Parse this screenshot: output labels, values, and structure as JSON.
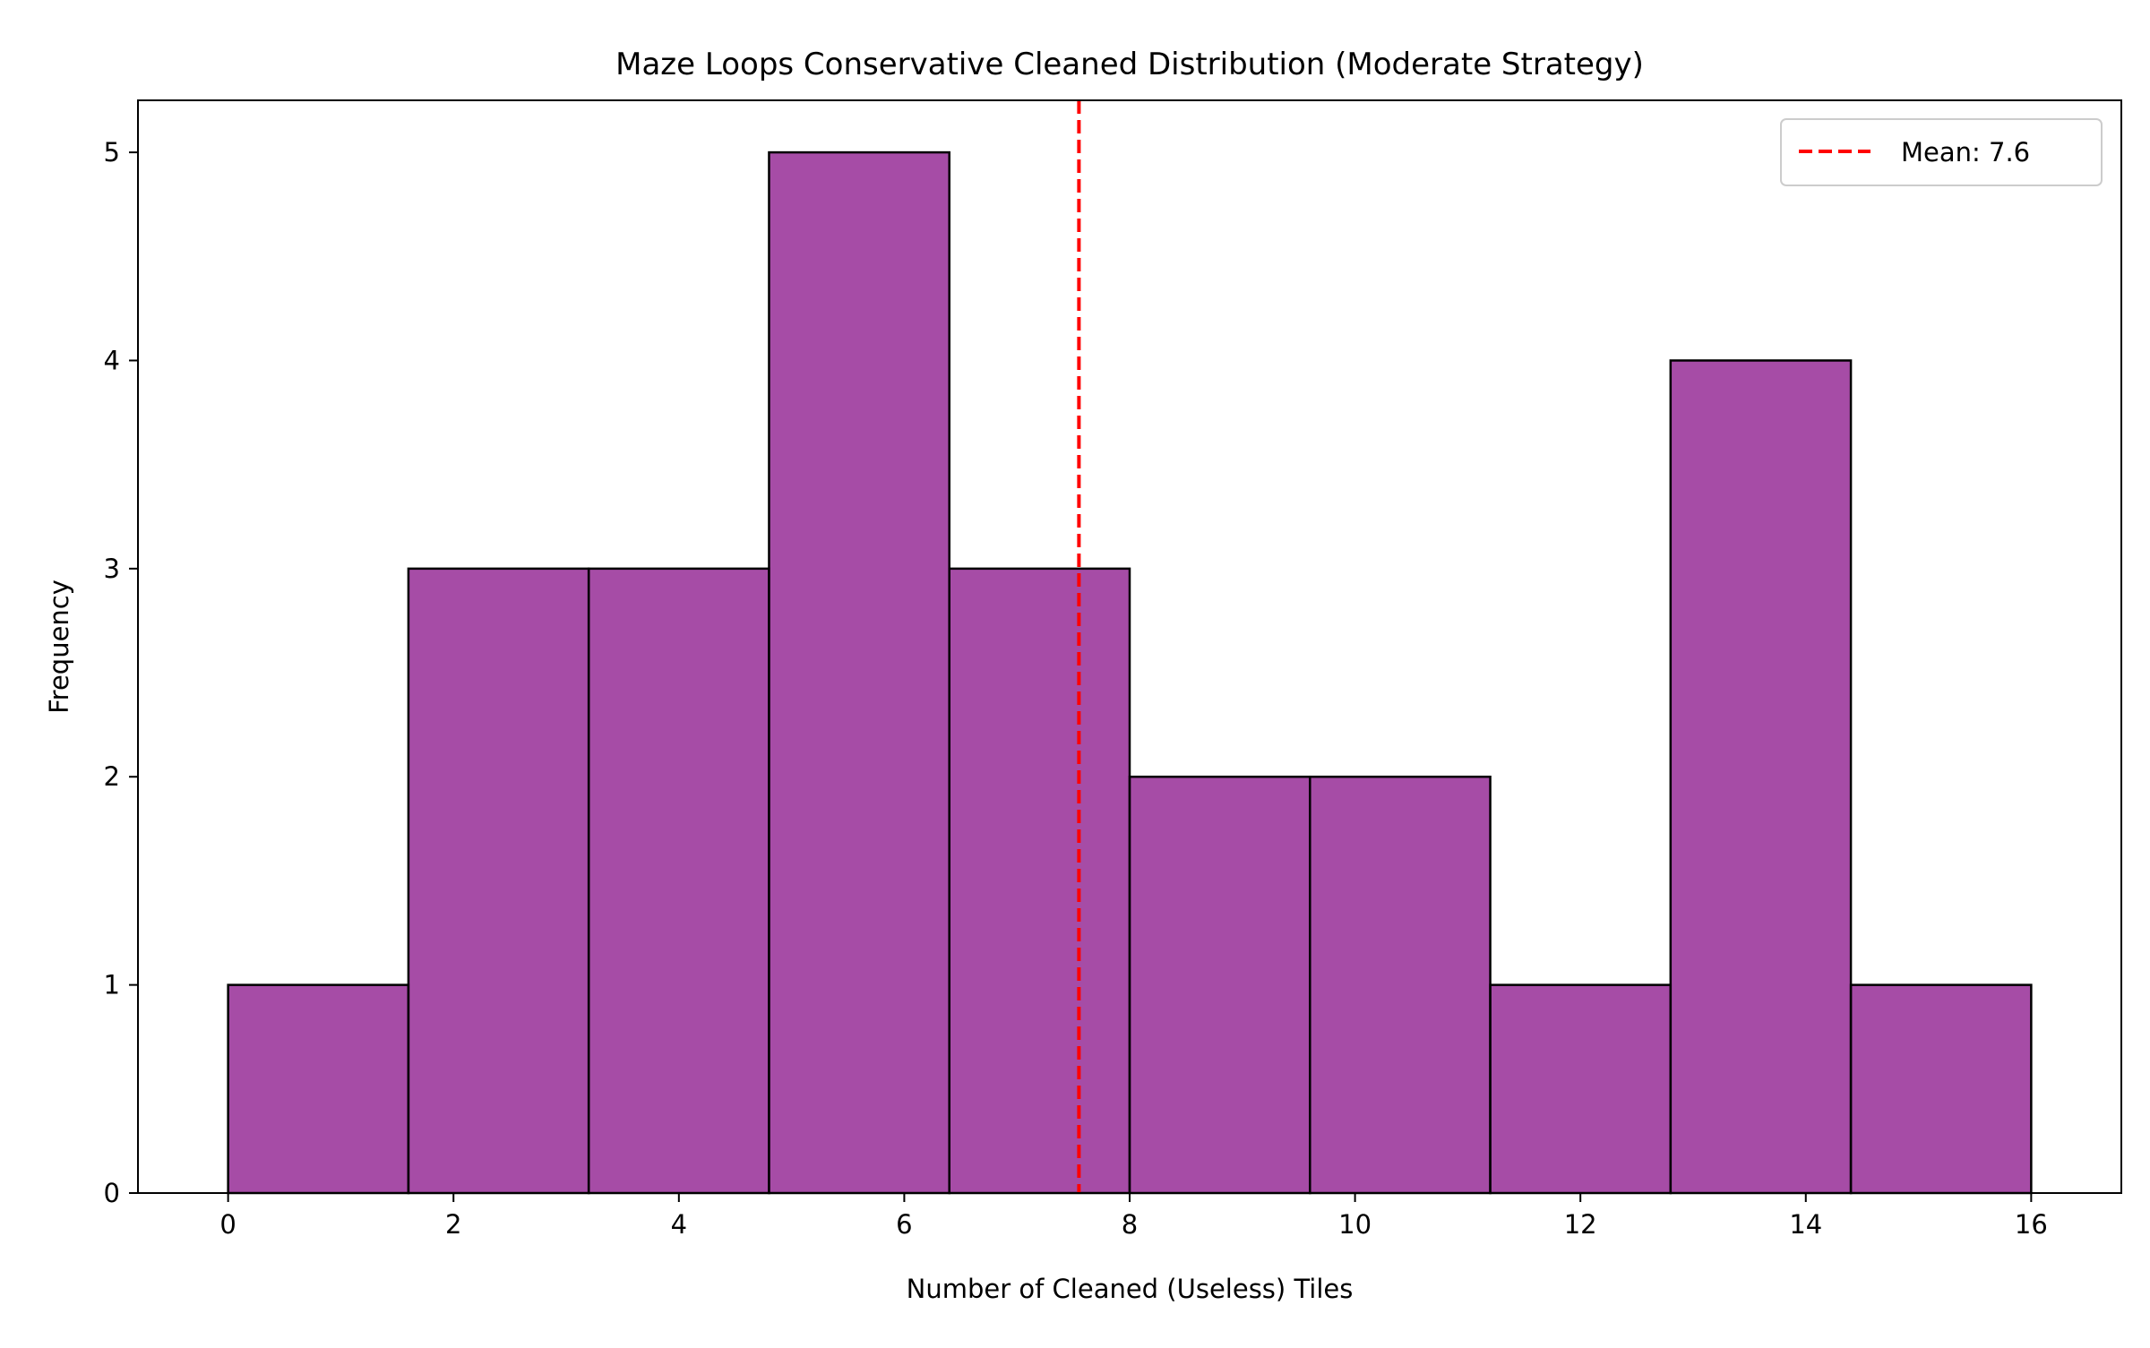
{
  "chart_data": {
    "type": "bar",
    "title": "Maze Loops Conservative Cleaned Distribution (Moderate Strategy)",
    "xlabel": "Number of Cleaned (Useless) Tiles",
    "ylabel": "Frequency",
    "bin_edges": [
      0,
      1.6,
      3.2,
      4.8,
      6.4,
      8.0,
      9.6,
      11.2,
      12.8,
      14.4,
      16.0
    ],
    "values": [
      1,
      3,
      3,
      5,
      3,
      2,
      2,
      1,
      4,
      1
    ],
    "xlim": [
      -0.8,
      16.8
    ],
    "ylim": [
      0,
      5.25
    ],
    "xticks": [
      0,
      2,
      4,
      6,
      8,
      10,
      12,
      14,
      16
    ],
    "xtick_labels": [
      "0",
      "2",
      "4",
      "6",
      "8",
      "10",
      "12",
      "14",
      "16"
    ],
    "yticks": [
      0,
      1,
      2,
      3,
      4,
      5
    ],
    "ytick_labels": [
      "0",
      "1",
      "2",
      "3",
      "4",
      "5"
    ],
    "mean_line": {
      "value": 7.55,
      "label": "Mean: 7.6",
      "color": "#ff0000",
      "style": "dashed"
    },
    "bar_color": "#800080",
    "bar_opacity": 0.7,
    "bar_edge_color": "#000000",
    "grid": false,
    "legend": {
      "placement": "top-right",
      "entries": [
        "Mean: 7.6"
      ]
    }
  }
}
